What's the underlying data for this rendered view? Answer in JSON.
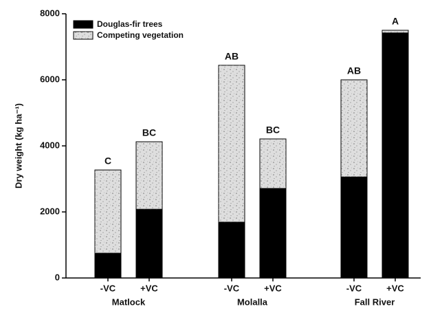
{
  "chart_data": {
    "type": "stacked_bar",
    "ylabel": "Dry weight (kg ha⁻¹)",
    "categories": [
      "-VC",
      "+VC",
      "-VC",
      "+VC",
      "-VC",
      "+VC"
    ],
    "groups": [
      "Matlock",
      "Molalla",
      "Fall River"
    ],
    "annotations": [
      "C",
      "BC",
      "AB",
      "BC",
      "AB",
      "A"
    ],
    "series": [
      {
        "name": "Douglas-fir trees",
        "color": "#000000",
        "values": [
          750,
          2080,
          1690,
          2710,
          3060,
          7420
        ]
      },
      {
        "name": "Competing vegetation",
        "color": "#dedede",
        "values": [
          2520,
          2045,
          4750,
          1500,
          2940,
          80
        ]
      }
    ],
    "ylim": [
      0,
      8000
    ],
    "yticks": [
      0,
      2000,
      4000,
      6000,
      8000
    ],
    "legend": "upper left"
  }
}
